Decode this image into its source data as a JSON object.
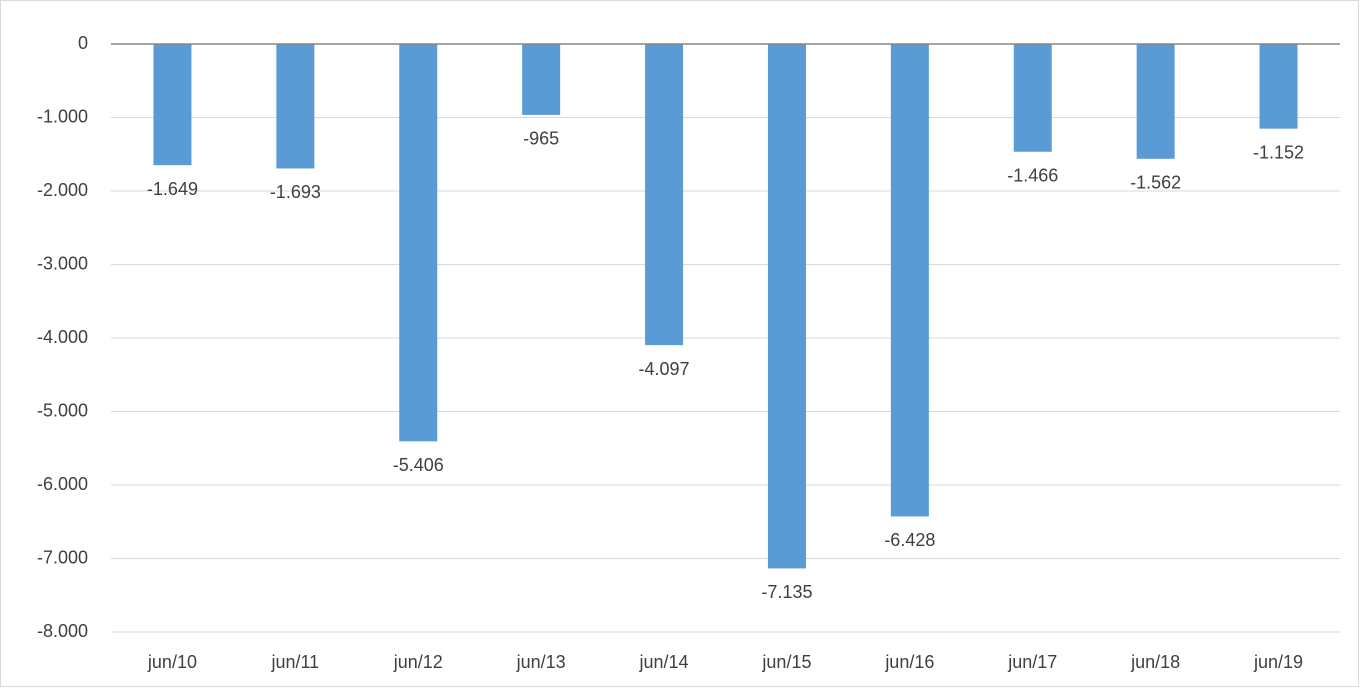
{
  "chart_data": {
    "type": "bar",
    "categories": [
      "jun/10",
      "jun/11",
      "jun/12",
      "jun/13",
      "jun/14",
      "jun/15",
      "jun/16",
      "jun/17",
      "jun/18",
      "jun/19"
    ],
    "values": [
      -1649,
      -1693,
      -5406,
      -965,
      -4097,
      -7135,
      -6428,
      -1466,
      -1562,
      -1152
    ],
    "value_labels": [
      "-1.649",
      "-1.693",
      "-5.406",
      "-965",
      "-4.097",
      "-7.135",
      "-6.428",
      "-1.466",
      "-1.562",
      "-1.152"
    ],
    "color": "#5b9bd5",
    "ylim": [
      -8000,
      0
    ],
    "yticks": [
      0,
      {
        "value": -1000,
        "label": "-1.000"
      },
      {
        "value": -2000,
        "label": "-2.000"
      },
      {
        "value": -3000,
        "label": "-3.000"
      },
      {
        "value": -4000,
        "label": "-4.000"
      },
      {
        "value": -5000,
        "label": "-5.000"
      },
      {
        "value": -6000,
        "label": "-6.000"
      },
      {
        "value": -7000,
        "label": "-7.000"
      },
      {
        "value": -8000,
        "label": "-8.000"
      }
    ],
    "grid": true
  }
}
